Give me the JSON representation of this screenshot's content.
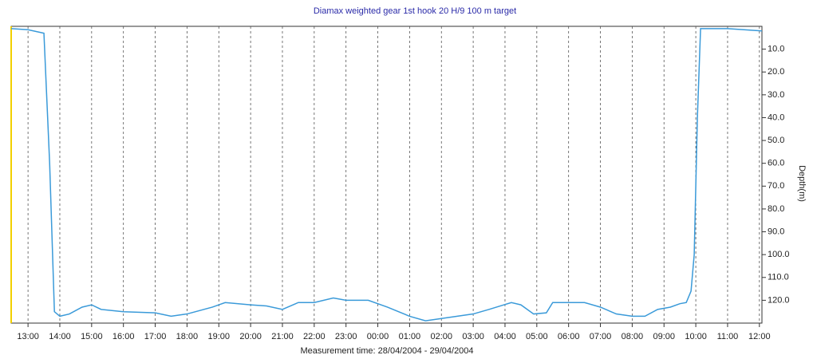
{
  "chart_data": {
    "type": "line",
    "title": "Diamax weighted gear 1st hook 20 H/9 100 m target",
    "x_label": "Measurement time: 28/04/2004 - 29/04/2004",
    "y_label": "Depth(m)",
    "x": [
      12.47,
      13.0,
      13.5,
      13.68,
      13.83,
      14.0,
      14.3,
      14.7,
      15.0,
      15.3,
      16.0,
      17.0,
      17.5,
      18.0,
      18.8,
      19.2,
      20.0,
      20.5,
      21.0,
      21.5,
      22.0,
      22.6,
      23.0,
      23.7,
      24.3,
      25.0,
      25.5,
      26.0,
      26.5,
      27.0,
      27.5,
      28.2,
      28.5,
      28.9,
      29.3,
      29.5,
      30.0,
      30.5,
      31.0,
      31.5,
      32.0,
      32.4,
      32.8,
      33.2,
      33.5,
      33.7,
      33.85,
      33.95,
      34.05,
      34.15,
      35.0,
      36.08
    ],
    "series": [
      {
        "name": "Depth",
        "color": "#3a9ad9",
        "values": [
          1,
          1.5,
          3,
          60,
          125,
          127,
          126,
          123,
          122,
          124,
          125,
          125.5,
          127,
          126,
          123,
          121,
          122,
          122.5,
          124,
          121,
          121,
          119,
          120,
          120,
          123,
          127,
          129,
          128,
          127,
          126,
          124,
          121,
          122,
          126,
          125.5,
          121,
          121,
          121,
          123,
          126,
          127,
          127,
          124,
          123,
          121.5,
          121,
          116,
          100,
          40,
          1,
          1,
          2
        ]
      }
    ],
    "xlim": [
      12.47,
      36.08
    ],
    "xticks": [
      {
        "value": 13,
        "label": "13:00"
      },
      {
        "value": 14,
        "label": "14:00"
      },
      {
        "value": 15,
        "label": "15:00"
      },
      {
        "value": 16,
        "label": "16:00"
      },
      {
        "value": 17,
        "label": "17:00"
      },
      {
        "value": 18,
        "label": "18:00"
      },
      {
        "value": 19,
        "label": "19:00"
      },
      {
        "value": 20,
        "label": "20:00"
      },
      {
        "value": 21,
        "label": "21:00"
      },
      {
        "value": 22,
        "label": "22:00"
      },
      {
        "value": 23,
        "label": "23:00"
      },
      {
        "value": 24,
        "label": "00:00"
      },
      {
        "value": 25,
        "label": "01:00"
      },
      {
        "value": 26,
        "label": "02:00"
      },
      {
        "value": 27,
        "label": "03:00"
      },
      {
        "value": 28,
        "label": "04:00"
      },
      {
        "value": 29,
        "label": "05:00"
      },
      {
        "value": 30,
        "label": "06:00"
      },
      {
        "value": 31,
        "label": "07:00"
      },
      {
        "value": 32,
        "label": "08:00"
      },
      {
        "value": 33,
        "label": "09:00"
      },
      {
        "value": 34,
        "label": "10:00"
      },
      {
        "value": 35,
        "label": "11:00"
      },
      {
        "value": 36,
        "label": "12:00"
      }
    ],
    "ylim": [
      0,
      130
    ],
    "y_inverted": true,
    "yticks": [
      {
        "value": 10,
        "label": "10.0"
      },
      {
        "value": 20,
        "label": "20.0"
      },
      {
        "value": 30,
        "label": "30.0"
      },
      {
        "value": 40,
        "label": "40.0"
      },
      {
        "value": 50,
        "label": "50.0"
      },
      {
        "value": 60,
        "label": "60.0"
      },
      {
        "value": 70,
        "label": "70.0"
      },
      {
        "value": 80,
        "label": "80.0"
      },
      {
        "value": 90,
        "label": "90.0"
      },
      {
        "value": 100,
        "label": "100.0"
      },
      {
        "value": 110,
        "label": "110.0"
      },
      {
        "value": 120,
        "label": "120.0"
      }
    ],
    "grid": true
  }
}
